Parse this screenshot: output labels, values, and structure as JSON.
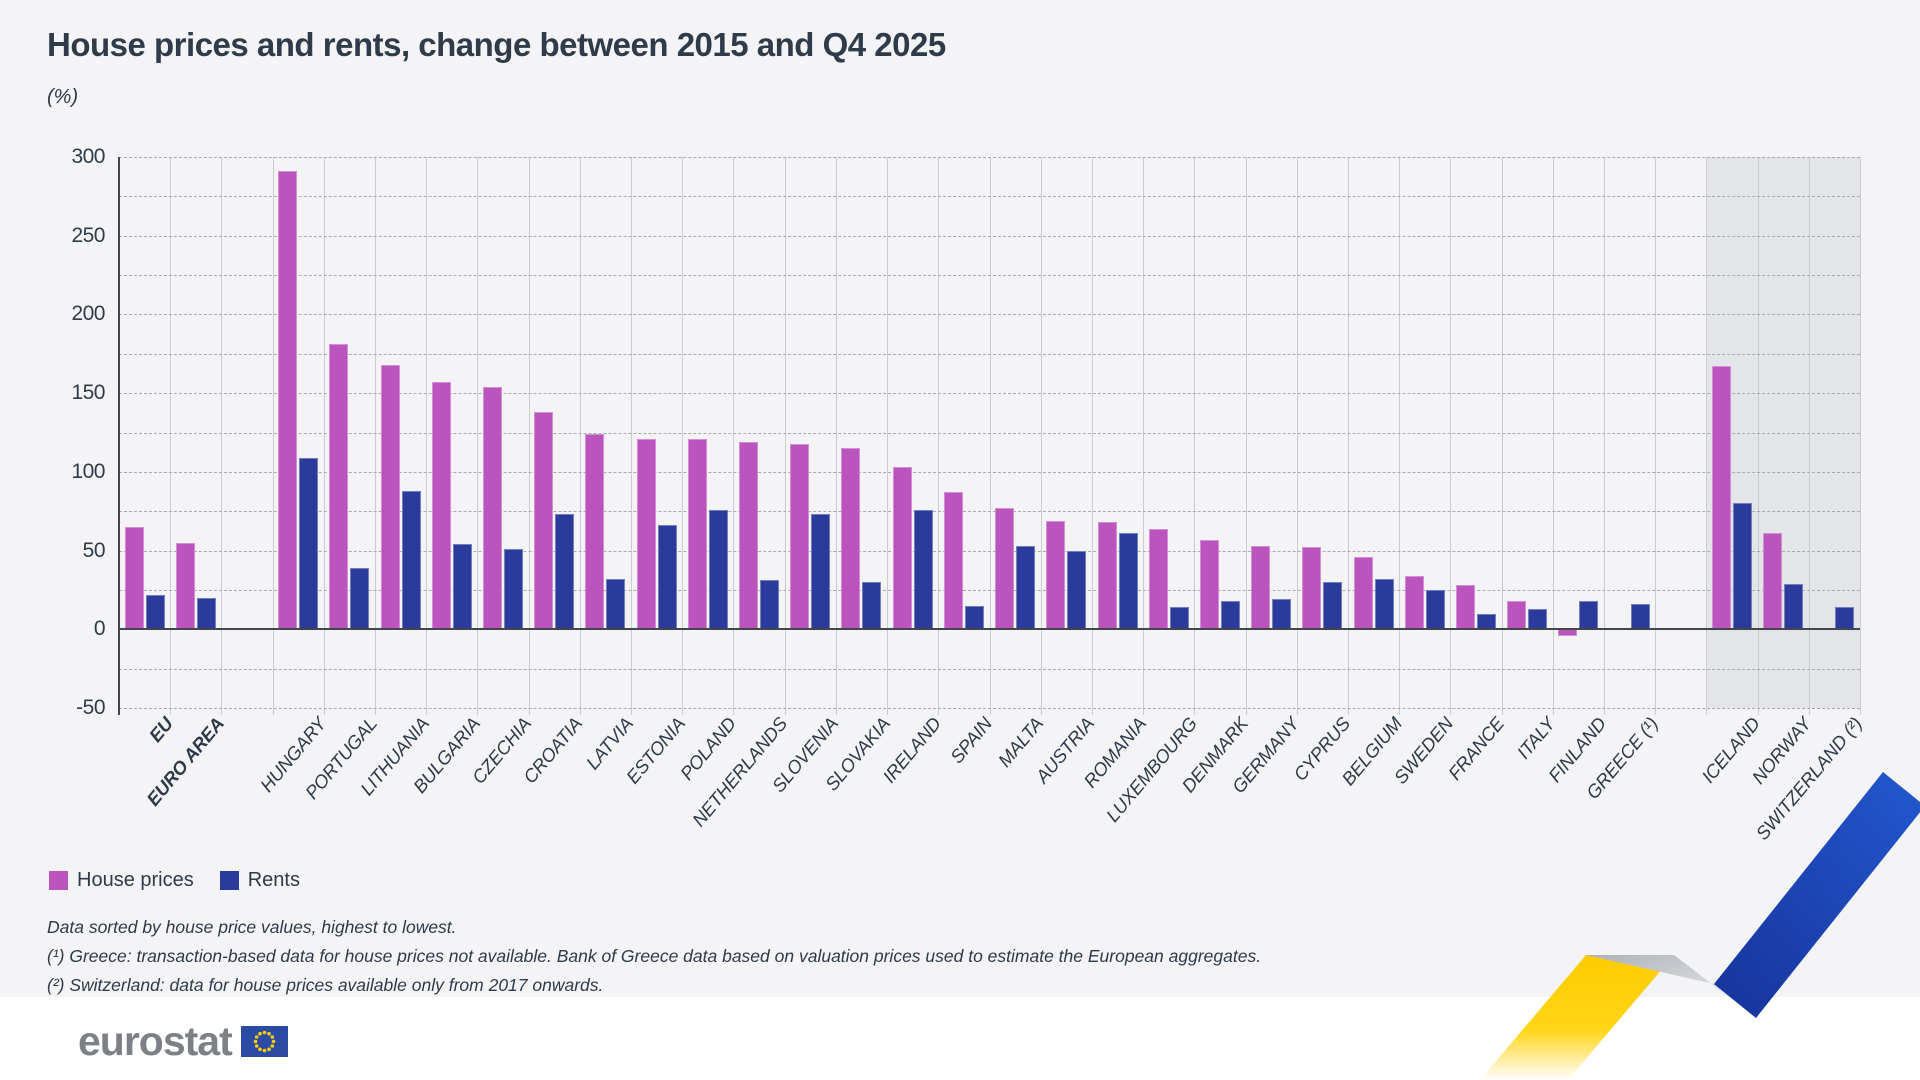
{
  "header": {
    "title": "House prices and rents, change between 2015 and Q4 2025",
    "unit_label": "(%)"
  },
  "chart_data": {
    "type": "bar",
    "title": "House prices and rents, change between 2015 and Q4 2025",
    "ylabel": "(%)",
    "ylim": [
      -50,
      300
    ],
    "ytick_step": 50,
    "grid_step": 25,
    "grid": "on",
    "legend_position": "bottom-left",
    "sort_note": "sorted by house price values, highest to lowest",
    "series_meta": {
      "house": {
        "name": "House prices",
        "color": "#bb54bd"
      },
      "rent": {
        "name": "Rents",
        "color": "#2b3b9c"
      }
    },
    "categories": [
      {
        "label": "EU",
        "house": 65,
        "rent": 22,
        "bold": true
      },
      {
        "label": "EURO AREA",
        "house": 55,
        "rent": 20,
        "bold": true
      },
      {
        "label": "HUNGARY",
        "house": 291,
        "rent": 109,
        "gap_before": true
      },
      {
        "label": "PORTUGAL",
        "house": 181,
        "rent": 39
      },
      {
        "label": "LITHUANIA",
        "house": 168,
        "rent": 88
      },
      {
        "label": "BULGARIA",
        "house": 157,
        "rent": 54
      },
      {
        "label": "CZECHIA",
        "house": 154,
        "rent": 51
      },
      {
        "label": "CROATIA",
        "house": 138,
        "rent": 73
      },
      {
        "label": "LATVIA",
        "house": 124,
        "rent": 32
      },
      {
        "label": "ESTONIA",
        "house": 121,
        "rent": 66
      },
      {
        "label": "POLAND",
        "house": 121,
        "rent": 76
      },
      {
        "label": "NETHERLANDS",
        "house": 119,
        "rent": 31
      },
      {
        "label": "SLOVENIA",
        "house": 118,
        "rent": 73
      },
      {
        "label": "SLOVAKIA",
        "house": 115,
        "rent": 30
      },
      {
        "label": "IRELAND",
        "house": 103,
        "rent": 76
      },
      {
        "label": "SPAIN",
        "house": 87,
        "rent": 15
      },
      {
        "label": "MALTA",
        "house": 77,
        "rent": 53
      },
      {
        "label": "AUSTRIA",
        "house": 69,
        "rent": 50
      },
      {
        "label": "ROMANIA",
        "house": 68,
        "rent": 61
      },
      {
        "label": "LUXEMBOURG",
        "house": 64,
        "rent": 14
      },
      {
        "label": "DENMARK",
        "house": 57,
        "rent": 18
      },
      {
        "label": "GERMANY",
        "house": 53,
        "rent": 19
      },
      {
        "label": "CYPRUS",
        "house": 52,
        "rent": 30
      },
      {
        "label": "BELGIUM",
        "house": 46,
        "rent": 32
      },
      {
        "label": "SWEDEN",
        "house": 34,
        "rent": 25
      },
      {
        "label": "FRANCE",
        "house": 28,
        "rent": 10
      },
      {
        "label": "ITALY",
        "house": 18,
        "rent": 13
      },
      {
        "label": "FINLAND",
        "house": -4,
        "rent": 18
      },
      {
        "label": "GREECE (¹)",
        "house": null,
        "rent": 16
      },
      {
        "label": "ICELAND",
        "house": 167,
        "rent": 80,
        "gap_before": true,
        "shaded": true
      },
      {
        "label": "NORWAY",
        "house": 61,
        "rent": 29,
        "shaded": true
      },
      {
        "label": "SWITZERLAND (²)",
        "house": null,
        "rent": 14,
        "shaded": true
      }
    ]
  },
  "footnotes": {
    "line1": "Data sorted by house price values, highest to lowest.",
    "line2": "(¹) Greece: transaction-based data for house prices not available. Bank of Greece data based on valuation prices used to estimate the European aggregates.",
    "line3": "(²) Switzerland: data for house prices available only from 2017 onwards."
  },
  "logo": {
    "text": "eurostat"
  }
}
